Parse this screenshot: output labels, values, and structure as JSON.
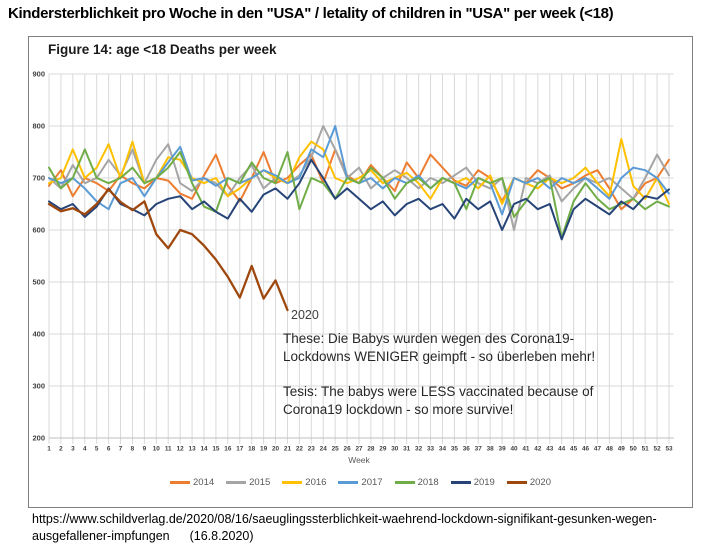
{
  "page": {
    "title": "Kindersterblichkeit pro Woche in den \"USA\" / letality of children in \"USA\" per week (<18)",
    "source_line1": "https://www.schildverlag.de/2020/08/16/saeuglingssterblichkeit-waehrend-lockdown-signifikant-gesunken-wegen-",
    "source_line2": "ausgefallener-impfungen",
    "source_date": "(16.8.2020)"
  },
  "chart_data": {
    "type": "line",
    "title": "Figure 14: age <18 Deaths per week",
    "xlabel": "Week",
    "ylabel": "",
    "ylim": [
      200,
      900
    ],
    "ytick_step": 100,
    "grid": true,
    "legend_position": "bottom",
    "x": [
      1,
      2,
      3,
      4,
      5,
      6,
      7,
      8,
      9,
      10,
      11,
      12,
      13,
      14,
      15,
      16,
      17,
      18,
      19,
      20,
      21,
      22,
      23,
      24,
      25,
      26,
      27,
      28,
      29,
      30,
      31,
      32,
      33,
      34,
      35,
      36,
      37,
      38,
      39,
      40,
      41,
      42,
      43,
      44,
      45,
      46,
      47,
      48,
      49,
      50,
      51,
      52,
      53
    ],
    "annotations": {
      "line_label_2020": "2020",
      "thesis_de_line1": "These: Die Babys wurden wegen des Corona19-",
      "thesis_de_line2": "Lockdowns WENIGER geimpft - so überleben mehr!",
      "thesis_en_line1": "Tesis: The babys were LESS vaccinated because of",
      "thesis_en_line2": "Corona19 lockdown - so more survive!"
    },
    "series": [
      {
        "name": "2014",
        "color": "#ED7D31",
        "values": [
          685,
          715,
          665,
          700,
          690,
          675,
          705,
          690,
          680,
          700,
          695,
          670,
          660,
          705,
          745,
          685,
          655,
          700,
          750,
          690,
          700,
          725,
          745,
          690,
          755,
          705,
          690,
          725,
          700,
          675,
          730,
          700,
          745,
          720,
          695,
          685,
          715,
          700,
          655,
          700,
          690,
          715,
          700,
          680,
          690,
          705,
          715,
          680,
          640,
          660,
          690,
          700,
          735
        ]
      },
      {
        "name": "2015",
        "color": "#A5A5A5",
        "values": [
          700,
          680,
          725,
          690,
          700,
          735,
          705,
          755,
          690,
          735,
          765,
          690,
          675,
          700,
          690,
          665,
          700,
          725,
          680,
          700,
          690,
          705,
          740,
          800,
          755,
          700,
          720,
          680,
          700,
          715,
          700,
          680,
          700,
          690,
          705,
          720,
          690,
          680,
          700,
          600,
          700,
          690,
          705,
          655,
          680,
          700,
          690,
          700,
          680,
          660,
          700,
          745,
          705
        ]
      },
      {
        "name": "2016",
        "color": "#FFC000",
        "values": [
          690,
          700,
          755,
          700,
          720,
          765,
          700,
          770,
          690,
          700,
          740,
          735,
          700,
          690,
          700,
          665,
          680,
          700,
          715,
          700,
          690,
          740,
          770,
          755,
          700,
          690,
          700,
          715,
          690,
          700,
          710,
          690,
          660,
          700,
          690,
          700,
          680,
          705,
          650,
          700,
          690,
          680,
          700,
          690,
          700,
          720,
          690,
          665,
          775,
          685,
          660,
          700,
          650
        ]
      },
      {
        "name": "2017",
        "color": "#5B9BD5",
        "values": [
          700,
          690,
          700,
          680,
          655,
          640,
          690,
          700,
          665,
          700,
          730,
          760,
          695,
          700,
          685,
          700,
          690,
          700,
          715,
          705,
          690,
          700,
          755,
          740,
          800,
          700,
          690,
          700,
          680,
          700,
          690,
          705,
          680,
          700,
          690,
          680,
          700,
          690,
          630,
          700,
          690,
          700,
          680,
          700,
          690,
          700,
          680,
          660,
          700,
          720,
          715,
          700,
          670
        ]
      },
      {
        "name": "2018",
        "color": "#70AD47",
        "values": [
          720,
          680,
          700,
          755,
          700,
          690,
          700,
          720,
          690,
          700,
          720,
          750,
          690,
          645,
          635,
          700,
          690,
          730,
          700,
          690,
          750,
          640,
          700,
          690,
          660,
          700,
          690,
          720,
          700,
          660,
          690,
          700,
          680,
          700,
          690,
          640,
          700,
          690,
          700,
          625,
          655,
          690,
          700,
          585,
          655,
          690,
          660,
          640,
          650,
          660,
          640,
          655,
          645
        ]
      },
      {
        "name": "2019",
        "color": "#264478",
        "values": [
          655,
          640,
          650,
          625,
          645,
          680,
          650,
          640,
          628,
          650,
          660,
          665,
          640,
          655,
          635,
          622,
          660,
          635,
          668,
          680,
          660,
          690,
          735,
          700,
          660,
          680,
          660,
          640,
          655,
          628,
          650,
          660,
          640,
          650,
          622,
          660,
          640,
          655,
          600,
          650,
          660,
          640,
          650,
          582,
          640,
          660,
          645,
          630,
          655,
          640,
          665,
          660,
          678
        ]
      },
      {
        "name": "2020",
        "color": "#9E480E",
        "values": [
          650,
          636,
          642,
          630,
          650,
          678,
          654,
          638,
          655,
          592,
          565,
          600,
          592,
          570,
          543,
          510,
          470,
          531,
          468,
          503,
          446,
          null,
          null,
          null,
          null,
          null,
          null,
          null,
          null,
          null,
          null,
          null,
          null,
          null,
          null,
          null,
          null,
          null,
          null,
          null,
          null,
          null,
          null,
          null,
          null,
          null,
          null,
          null,
          null,
          null,
          null,
          null,
          null
        ]
      }
    ]
  }
}
